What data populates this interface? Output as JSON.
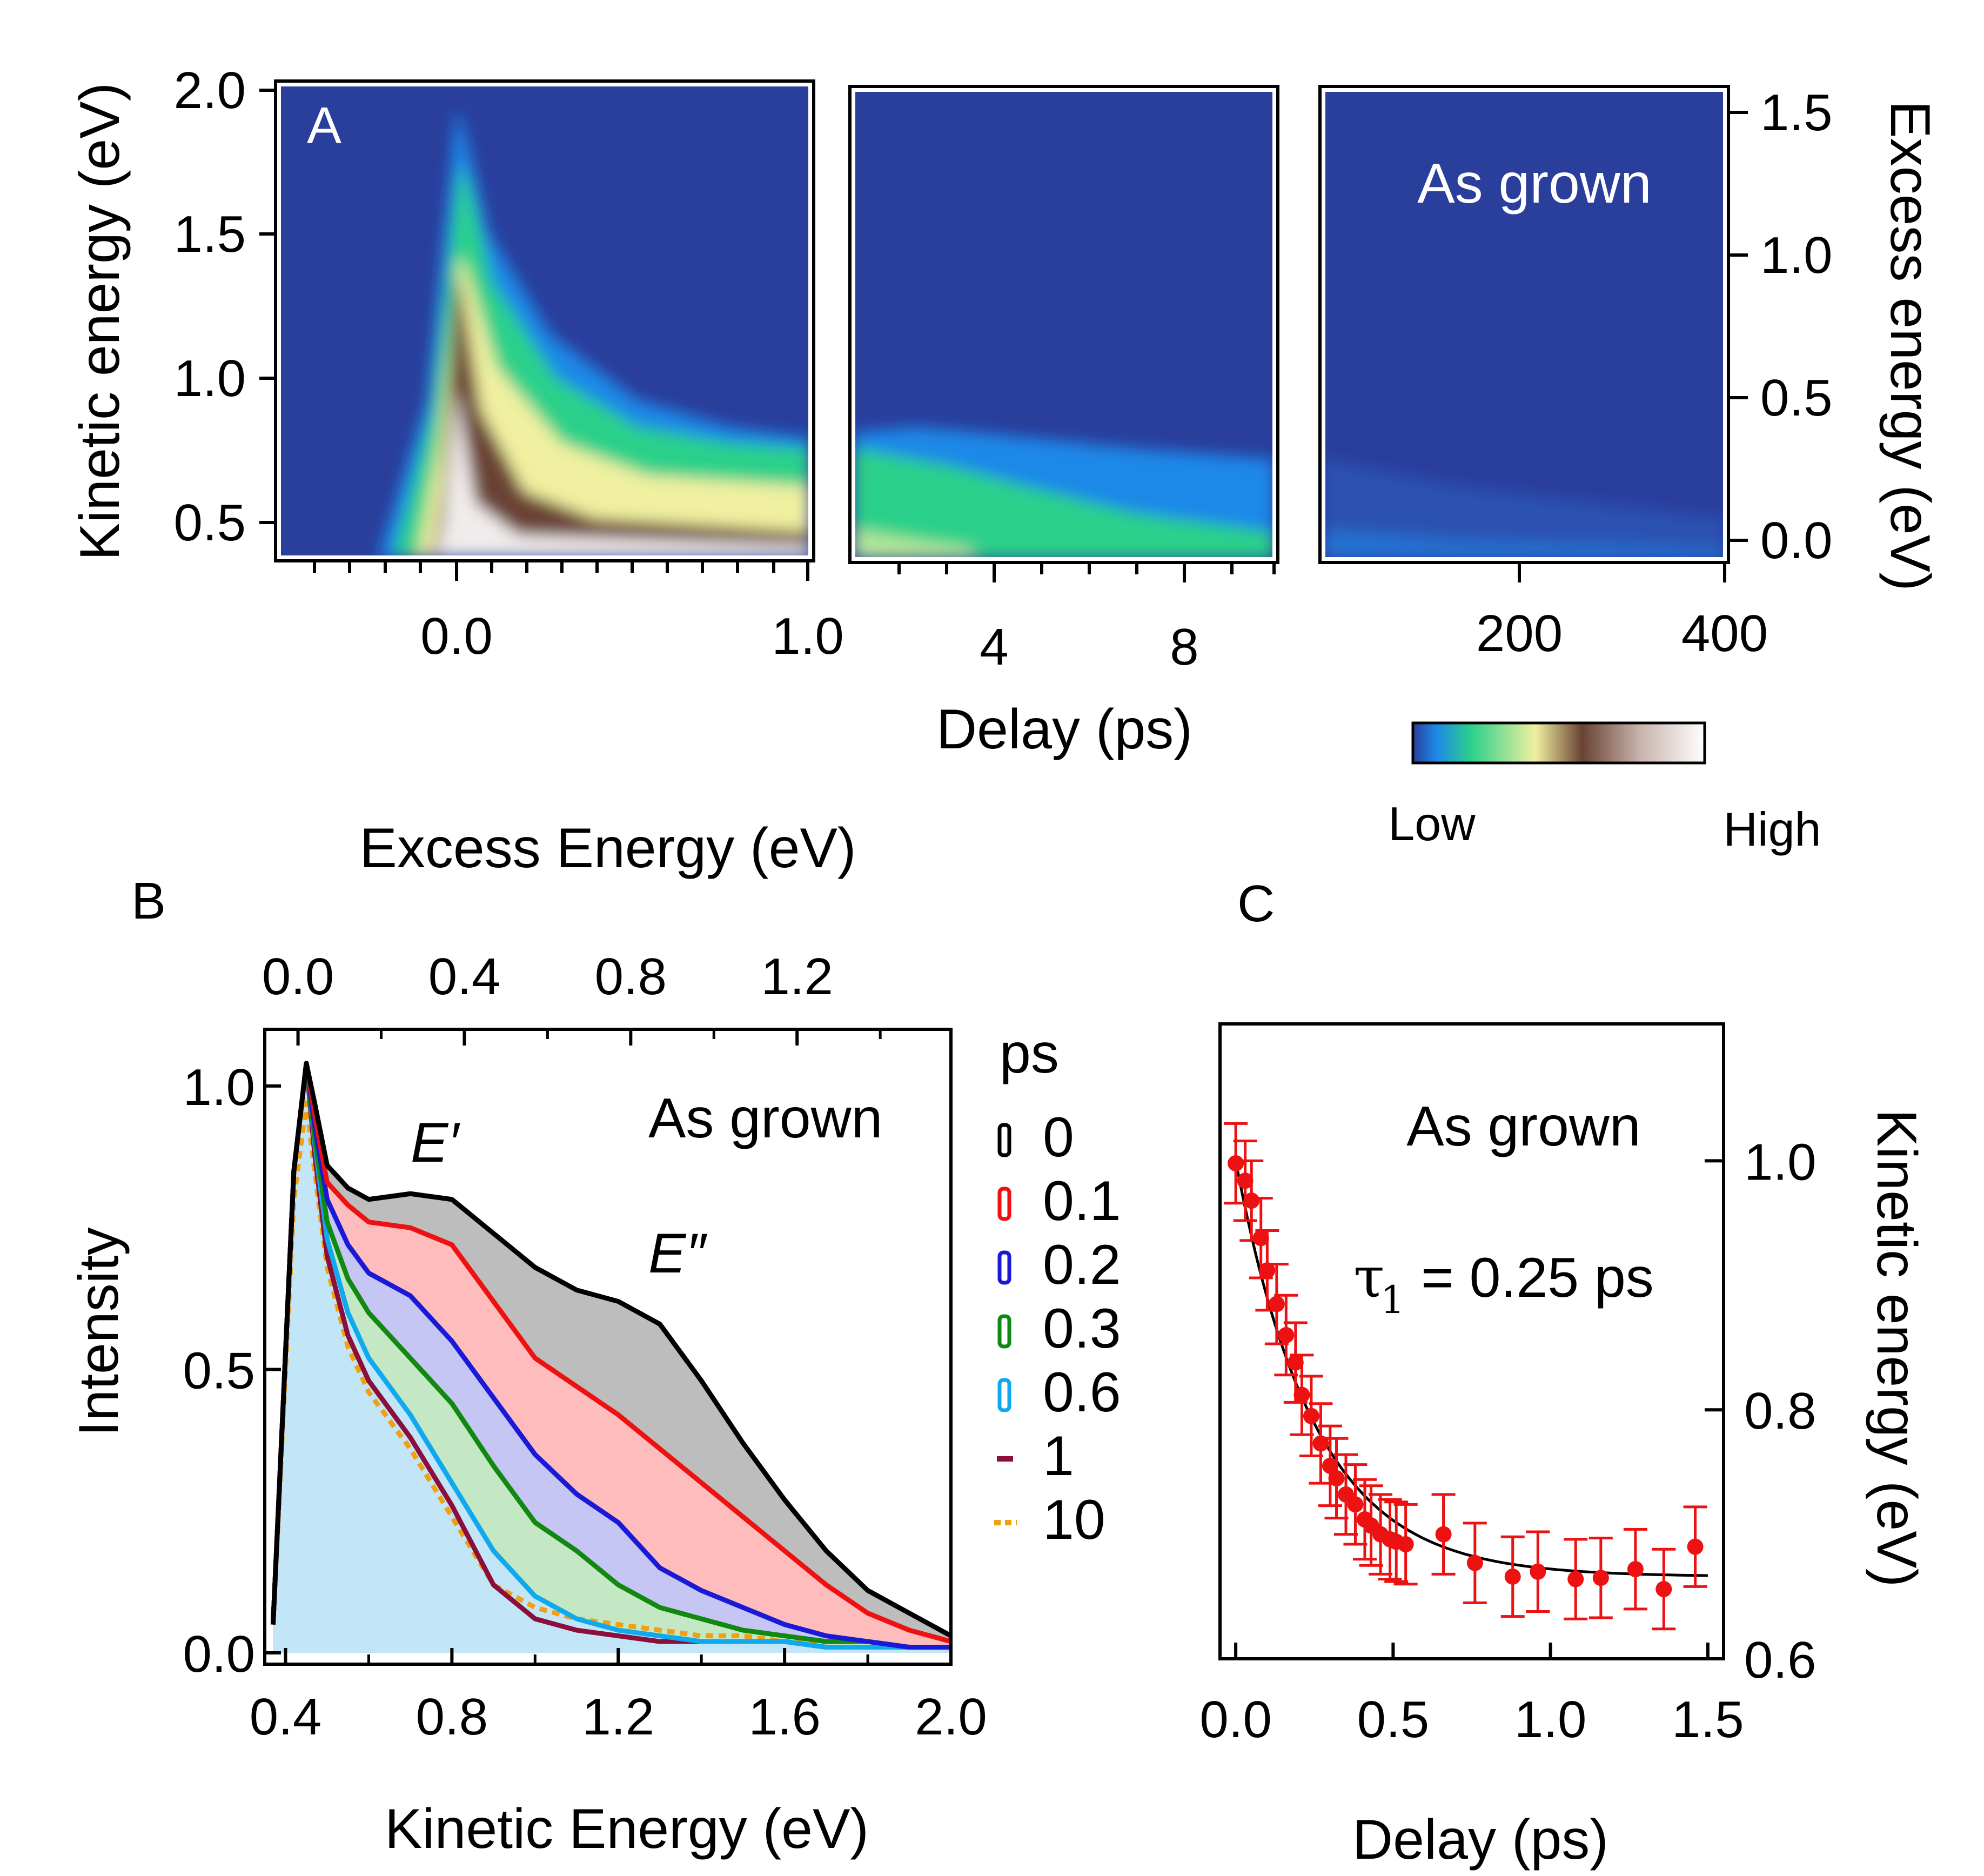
{
  "figure": {
    "panel_a": {
      "letter": "A",
      "annotation": "As grown",
      "ylabel": "Kinetic energy (eV)",
      "ylabel_right": "Excess energy (eV)",
      "xlabel": "Delay (ps)",
      "y_ticks": [
        "2.0",
        "1.5",
        "1.0",
        "0.5"
      ],
      "y2_ticks": [
        "1.5",
        "1.0",
        "0.5",
        "0.0"
      ],
      "x_ticks_1": [
        "0.0",
        "1.0"
      ],
      "x_ticks_2": [
        "4",
        "8"
      ],
      "x_ticks_3": [
        "200",
        "400"
      ],
      "colorbar_low": "Low",
      "colorbar_high": "High",
      "colorbar_colors": [
        "#2a3e9c",
        "#1e88e8",
        "#2cd08a",
        "#f0f0a0",
        "#6a4234",
        "#c9b4ae",
        "#ffffff"
      ]
    },
    "panel_b": {
      "letter": "B",
      "top_title": "Excess Energy (eV)",
      "top_ticks": [
        "0.0",
        "0.4",
        "0.8",
        "1.2"
      ],
      "xlabel": "Kinetic Energy (eV)",
      "ylabel": "Intensity",
      "x_ticks": [
        "0.4",
        "0.8",
        "1.2",
        "1.6",
        "2.0"
      ],
      "y_ticks": [
        "1.0",
        "0.5",
        "0.0"
      ],
      "annotation": "As grown",
      "peak1": "E′",
      "peak2": "E″",
      "legend_title": "ps",
      "legend": [
        {
          "label": "0",
          "color": "#000000"
        },
        {
          "label": "0.1",
          "color": "#ee1111"
        },
        {
          "label": "0.2",
          "color": "#1a1ad6"
        },
        {
          "label": "0.3",
          "color": "#118811"
        },
        {
          "label": "0.6",
          "color": "#10a8ee"
        },
        {
          "label": "1",
          "color": "#8a0f3c"
        },
        {
          "label": "10",
          "color": "#f0a010"
        }
      ]
    },
    "panel_c": {
      "letter": "C",
      "annotation": "As grown",
      "tau_symbol": "τ",
      "tau_sub": "1",
      "tau_value": "= 0.25 ps",
      "xlabel": "Delay (ps)",
      "ylabel_right": "Kinetic energy (eV)",
      "x_ticks": [
        "0.0",
        "0.5",
        "1.0",
        "1.5"
      ],
      "y_ticks": [
        "1.0",
        "0.8",
        "0.6"
      ],
      "point_color": "#ee1111"
    }
  },
  "chart_data": [
    {
      "type": "heatmap",
      "title": "A",
      "xlabel": "Delay (ps)",
      "ylabel": "Kinetic energy (eV)",
      "ylabel_right": "Excess energy (eV)",
      "ylim": [
        0.35,
        2.0
      ],
      "y2lim": [
        -0.07,
        1.6
      ],
      "segments": [
        {
          "xlim": [
            -0.5,
            1.0
          ],
          "ticks": [
            0.0,
            1.0
          ]
        },
        {
          "xlim": [
            1.0,
            10.0
          ],
          "ticks": [
            4,
            8
          ]
        },
        {
          "xlim": [
            10,
            400
          ],
          "ticks": [
            200,
            400
          ]
        }
      ],
      "colorbar": [
        "Low",
        "High"
      ],
      "annotation": "As grown"
    },
    {
      "type": "area",
      "title": "B",
      "xlabel": "Kinetic Energy (eV)",
      "ylabel": "Intensity",
      "top_xlabel": "Excess Energy (eV)",
      "xlim": [
        0.35,
        2.0
      ],
      "ylim": [
        -0.02,
        1.1
      ],
      "x_ticks": [
        0.4,
        0.8,
        1.2,
        1.6,
        2.0
      ],
      "y_ticks": [
        0.0,
        0.5,
        1.0
      ],
      "top_ticks": [
        0.0,
        0.4,
        0.8,
        1.2
      ],
      "legend_title": "ps",
      "series": [
        {
          "name": "0",
          "x": [
            0.37,
            0.42,
            0.45,
            0.47,
            0.5,
            0.55,
            0.6,
            0.7,
            0.8,
            0.9,
            1.0,
            1.1,
            1.2,
            1.3,
            1.4,
            1.5,
            1.6,
            1.7,
            1.8,
            1.9,
            2.0
          ],
          "y": [
            0.05,
            0.85,
            1.04,
            0.97,
            0.86,
            0.82,
            0.8,
            0.81,
            0.8,
            0.74,
            0.68,
            0.64,
            0.62,
            0.58,
            0.48,
            0.37,
            0.27,
            0.18,
            0.11,
            0.07,
            0.03
          ]
        },
        {
          "name": "0.1",
          "x": [
            0.37,
            0.42,
            0.45,
            0.47,
            0.5,
            0.55,
            0.6,
            0.7,
            0.8,
            0.9,
            1.0,
            1.1,
            1.2,
            1.3,
            1.4,
            1.5,
            1.6,
            1.7,
            1.8,
            1.9,
            2.0
          ],
          "y": [
            0.05,
            0.85,
            1.04,
            0.95,
            0.83,
            0.79,
            0.76,
            0.75,
            0.72,
            0.62,
            0.52,
            0.47,
            0.42,
            0.36,
            0.3,
            0.24,
            0.18,
            0.12,
            0.07,
            0.04,
            0.02
          ]
        },
        {
          "name": "0.2",
          "x": [
            0.37,
            0.42,
            0.45,
            0.47,
            0.5,
            0.55,
            0.6,
            0.7,
            0.8,
            0.9,
            1.0,
            1.1,
            1.2,
            1.3,
            1.4,
            1.5,
            1.6,
            1.7,
            1.8,
            1.9,
            2.0
          ],
          "y": [
            0.05,
            0.85,
            1.04,
            0.93,
            0.8,
            0.72,
            0.67,
            0.63,
            0.55,
            0.45,
            0.35,
            0.28,
            0.23,
            0.15,
            0.11,
            0.08,
            0.05,
            0.03,
            0.02,
            0.01,
            0.01
          ]
        },
        {
          "name": "0.3",
          "x": [
            0.37,
            0.42,
            0.45,
            0.47,
            0.5,
            0.55,
            0.6,
            0.7,
            0.8,
            0.9,
            1.0,
            1.1,
            1.2,
            1.3,
            1.4,
            1.5,
            1.6,
            1.7,
            1.8,
            1.9,
            2.0
          ],
          "y": [
            0.05,
            0.85,
            1.04,
            0.91,
            0.76,
            0.66,
            0.6,
            0.52,
            0.44,
            0.33,
            0.23,
            0.18,
            0.12,
            0.08,
            0.06,
            0.04,
            0.03,
            0.02,
            0.02,
            0.01,
            0.01
          ]
        },
        {
          "name": "0.6",
          "x": [
            0.37,
            0.42,
            0.45,
            0.47,
            0.5,
            0.55,
            0.6,
            0.7,
            0.8,
            0.9,
            1.0,
            1.1,
            1.2,
            1.3,
            1.4,
            1.5,
            1.6,
            1.7,
            1.8,
            1.9,
            2.0
          ],
          "y": [
            0.05,
            0.85,
            1.04,
            0.9,
            0.73,
            0.6,
            0.52,
            0.42,
            0.3,
            0.18,
            0.1,
            0.06,
            0.04,
            0.03,
            0.02,
            0.02,
            0.02,
            0.01,
            0.01,
            0.01,
            0.01
          ]
        },
        {
          "name": "1",
          "x": [
            0.37,
            0.42,
            0.45,
            0.47,
            0.5,
            0.55,
            0.6,
            0.7,
            0.8,
            0.9,
            1.0,
            1.1,
            1.2,
            1.3,
            1.4,
            1.5,
            1.6,
            1.7,
            1.8,
            1.9,
            2.0
          ],
          "y": [
            0.05,
            0.85,
            1.04,
            0.88,
            0.7,
            0.56,
            0.48,
            0.38,
            0.26,
            0.12,
            0.06,
            0.04,
            0.03,
            0.02,
            0.02,
            0.02,
            0.02,
            0.01,
            0.01,
            0.01,
            0.01
          ]
        },
        {
          "name": "10",
          "x": [
            0.37,
            0.42,
            0.45,
            0.47,
            0.5,
            0.55,
            0.6,
            0.7,
            0.8,
            0.9,
            1.0,
            1.1,
            1.2,
            1.3,
            1.4,
            1.5,
            1.6,
            1.7,
            1.8,
            1.9,
            2.0
          ],
          "y": [
            0.05,
            0.8,
            0.97,
            0.85,
            0.68,
            0.54,
            0.46,
            0.36,
            0.24,
            0.12,
            0.08,
            0.06,
            0.05,
            0.04,
            0.03,
            0.03,
            0.02,
            0.02,
            0.02,
            0.01,
            0.01
          ]
        }
      ]
    },
    {
      "type": "scatter",
      "title": "C",
      "xlabel": "Delay (ps)",
      "ylabel_right": "Kinetic energy (eV)",
      "xlim": [
        -0.05,
        1.55
      ],
      "ylim": [
        0.6,
        1.11
      ],
      "x_ticks": [
        0.0,
        0.5,
        1.0,
        1.5
      ],
      "y_ticks": [
        0.6,
        0.8,
        1.0
      ],
      "x": [
        0.0,
        0.03,
        0.05,
        0.08,
        0.1,
        0.13,
        0.16,
        0.19,
        0.21,
        0.24,
        0.27,
        0.3,
        0.32,
        0.35,
        0.38,
        0.41,
        0.43,
        0.46,
        0.49,
        0.51,
        0.54,
        0.66,
        0.76,
        0.88,
        0.96,
        1.08,
        1.16,
        1.27,
        1.36,
        1.46
      ],
      "y": [
        0.998,
        0.984,
        0.968,
        0.938,
        0.912,
        0.885,
        0.86,
        0.838,
        0.812,
        0.795,
        0.773,
        0.755,
        0.745,
        0.732,
        0.724,
        0.712,
        0.707,
        0.7,
        0.696,
        0.694,
        0.692,
        0.7,
        0.677,
        0.666,
        0.67,
        0.664,
        0.665,
        0.672,
        0.656,
        0.69
      ],
      "error": [
        0.032,
        0.032,
        0.032,
        0.032,
        0.032,
        0.032,
        0.032,
        0.032,
        0.032,
        0.032,
        0.032,
        0.032,
        0.032,
        0.032,
        0.032,
        0.032,
        0.032,
        0.032,
        0.032,
        0.032,
        0.032,
        0.032,
        0.032,
        0.032,
        0.032,
        0.032,
        0.032,
        0.032,
        0.032,
        0.032
      ],
      "fit": {
        "function": "y0 + A*exp(-x/tau)",
        "y0": 0.666,
        "A": 0.334,
        "tau": 0.25
      },
      "annotation": "As grown"
    }
  ]
}
